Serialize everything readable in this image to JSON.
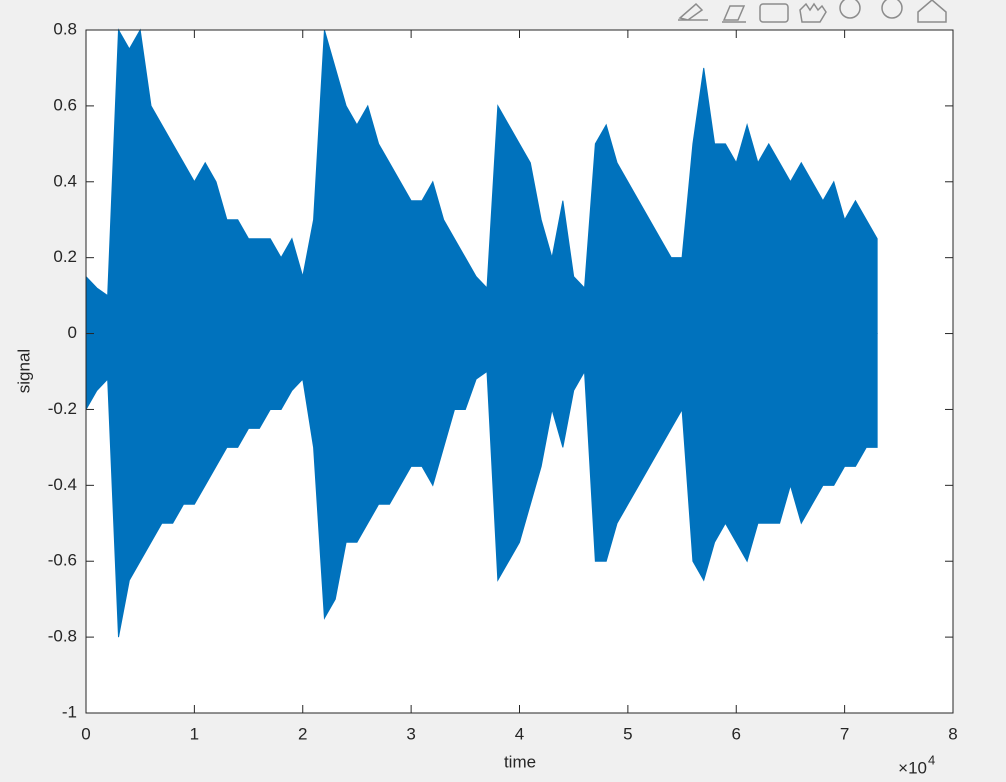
{
  "chart_data": {
    "type": "area",
    "xlabel": "time",
    "ylabel": "signal",
    "x_multiplier": {
      "base": "×10",
      "exponent": "4"
    },
    "xlim": [
      0,
      80000
    ],
    "ylim": [
      -1,
      0.8
    ],
    "xticks": [
      0,
      {
        "value": 10000,
        "label": "1"
      },
      {
        "value": 20000,
        "label": "2"
      },
      {
        "value": 30000,
        "label": "3"
      },
      {
        "value": 40000,
        "label": "4"
      },
      {
        "value": 50000,
        "label": "5"
      },
      {
        "value": 60000,
        "label": "6"
      },
      {
        "value": 70000,
        "label": "7"
      },
      {
        "value": 80000,
        "label": "8"
      }
    ],
    "yticks": [
      -1,
      -0.8,
      -0.6,
      -0.4,
      -0.2,
      0,
      0.2,
      0.4,
      0.6,
      0.8
    ],
    "x": [
      0,
      1000,
      2000,
      3000,
      4000,
      5000,
      6000,
      7000,
      8000,
      9000,
      10000,
      11000,
      12000,
      13000,
      14000,
      15000,
      16000,
      17000,
      18000,
      19000,
      20000,
      21000,
      22000,
      23000,
      24000,
      25000,
      26000,
      27000,
      28000,
      29000,
      30000,
      31000,
      32000,
      33000,
      34000,
      35000,
      36000,
      37000,
      38000,
      39000,
      40000,
      41000,
      42000,
      43000,
      44000,
      45000,
      46000,
      47000,
      48000,
      49000,
      50000,
      51000,
      52000,
      53000,
      54000,
      55000,
      56000,
      57000,
      58000,
      59000,
      60000,
      61000,
      62000,
      63000,
      64000,
      65000,
      66000,
      67000,
      68000,
      69000,
      70000,
      71000,
      72000,
      73000
    ],
    "series": [
      {
        "color": "#0072bd",
        "values": [
          0.15,
          0.12,
          0.1,
          0.8,
          0.75,
          0.8,
          0.6,
          0.55,
          0.5,
          0.45,
          0.4,
          0.45,
          0.4,
          0.3,
          0.3,
          0.25,
          0.25,
          0.25,
          0.2,
          0.25,
          0.15,
          0.3,
          0.8,
          0.7,
          0.6,
          0.55,
          0.6,
          0.5,
          0.45,
          0.4,
          0.35,
          0.35,
          0.4,
          0.3,
          0.25,
          0.2,
          0.15,
          0.12,
          0.6,
          0.55,
          0.5,
          0.45,
          0.3,
          0.2,
          0.35,
          0.15,
          0.12,
          0.5,
          0.55,
          0.45,
          0.4,
          0.35,
          0.3,
          0.25,
          0.2,
          0.2,
          0.5,
          0.7,
          0.5,
          0.5,
          0.45,
          0.55,
          0.45,
          0.5,
          0.45,
          0.4,
          0.45,
          0.4,
          0.35,
          0.4,
          0.3,
          0.35,
          0.3,
          0.25
        ]
      },
      {
        "color": "#0072bd",
        "values": [
          -0.2,
          -0.15,
          -0.12,
          -0.8,
          -0.65,
          -0.6,
          -0.55,
          -0.5,
          -0.5,
          -0.45,
          -0.45,
          -0.4,
          -0.35,
          -0.3,
          -0.3,
          -0.25,
          -0.25,
          -0.2,
          -0.2,
          -0.15,
          -0.12,
          -0.3,
          -0.75,
          -0.7,
          -0.55,
          -0.55,
          -0.5,
          -0.45,
          -0.45,
          -0.4,
          -0.35,
          -0.35,
          -0.4,
          -0.3,
          -0.2,
          -0.2,
          -0.12,
          -0.1,
          -0.65,
          -0.6,
          -0.55,
          -0.45,
          -0.35,
          -0.2,
          -0.3,
          -0.15,
          -0.1,
          -0.6,
          -0.6,
          -0.5,
          -0.45,
          -0.4,
          -0.35,
          -0.3,
          -0.25,
          -0.2,
          -0.6,
          -0.65,
          -0.55,
          -0.5,
          -0.55,
          -0.6,
          -0.5,
          -0.5,
          -0.5,
          -0.4,
          -0.5,
          -0.45,
          -0.4,
          -0.4,
          -0.35,
          -0.35,
          -0.3,
          -0.3
        ]
      }
    ]
  }
}
